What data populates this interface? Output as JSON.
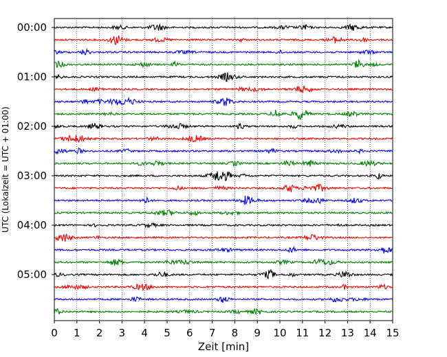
{
  "chart_data": {
    "type": "line",
    "title": "",
    "xlabel": "Zeit  [min]",
    "ylabel": "UTC (Lokalzeit = UTC + 01:00)",
    "xlim": [
      0,
      15
    ],
    "x_ticks": [
      0,
      1,
      2,
      3,
      4,
      5,
      6,
      7,
      8,
      9,
      10,
      11,
      12,
      13,
      14,
      15
    ],
    "x_tick_labels": [
      "0",
      "1",
      "2",
      "3",
      "4",
      "5",
      "6",
      "7",
      "8",
      "9",
      "10",
      "11",
      "12",
      "13",
      "14",
      "15"
    ],
    "y_tick_labels": [
      "00:00",
      "01:00",
      "02:00",
      "03:00",
      "04:00",
      "05:00"
    ],
    "trace_interval_min": 15,
    "trace_count": 24,
    "trace_colors": [
      "#000000",
      "#ff0000",
      "#0000ff",
      "#008000"
    ],
    "vertical_grid": "dotted",
    "legend": "none"
  }
}
